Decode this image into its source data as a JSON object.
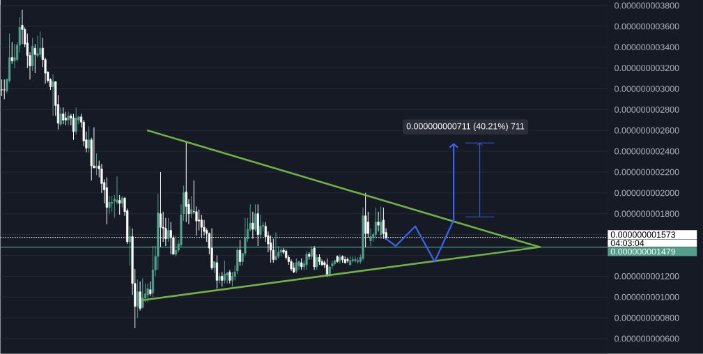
{
  "chart_data": {
    "type": "candlestick",
    "categories": [
      null,
      null,
      null,
      null,
      null,
      null,
      null,
      null,
      null,
      null,
      null,
      null,
      null,
      null,
      null,
      null,
      null,
      null,
      null,
      null,
      null,
      null,
      null,
      null,
      null,
      null,
      null,
      null,
      null,
      null,
      null,
      null,
      null,
      null,
      null,
      null,
      null,
      null,
      null,
      null,
      null,
      null,
      null,
      null,
      null,
      null,
      null,
      null,
      null,
      null,
      null,
      null,
      null,
      null,
      null,
      null,
      null,
      null,
      null,
      null,
      null,
      null,
      null,
      null,
      null,
      null,
      null,
      null,
      null,
      null,
      null,
      null,
      null,
      null,
      null,
      null,
      null,
      null,
      null,
      null,
      null,
      null,
      null,
      null,
      null,
      null,
      null,
      null,
      null,
      null,
      null,
      null,
      null,
      null,
      null,
      null,
      null,
      null,
      null,
      null,
      null,
      null,
      null,
      null,
      null,
      null,
      null,
      null,
      null,
      null,
      null,
      null,
      null,
      null,
      null,
      null,
      null,
      null,
      null,
      null,
      null,
      null,
      null,
      null,
      null,
      null,
      null,
      null,
      null,
      null,
      null,
      null,
      null,
      null,
      null,
      null,
      null,
      null,
      null,
      null,
      null,
      null,
      null,
      null,
      null,
      null,
      null,
      null,
      null,
      null,
      null,
      null,
      null,
      null,
      null,
      null,
      null,
      null,
      null,
      null,
      null,
      null,
      null,
      null,
      null,
      null,
      null,
      null,
      null,
      null,
      null,
      null,
      null,
      null,
      null,
      null,
      null,
      null,
      null,
      null,
      null,
      null,
      null,
      null,
      null,
      null,
      null,
      null,
      null,
      null,
      null,
      null,
      null,
      null,
      null,
      null,
      null,
      null,
      null,
      null,
      null,
      null,
      null,
      null,
      null,
      null,
      null,
      null,
      null,
      null,
      null,
      null,
      null,
      null,
      null,
      null,
      null,
      null,
      null,
      null,
      null,
      null,
      null,
      null,
      null,
      null,
      null,
      null,
      null,
      null,
      null,
      null,
      null,
      null,
      null,
      null,
      null
    ],
    "ohlc": [
      [
        2.99e-09,
        3.09e-09,
        2.93e-09,
        2.99e-09
      ],
      [
        2.99e-09,
        3.09e-09,
        2.9e-09,
        2.99e-09
      ],
      [
        2.98e-09,
        3.1e-09,
        2.96e-09,
        3.09e-09
      ],
      [
        3.08e-09,
        3.53e-09,
        3.06e-09,
        3.3e-09
      ],
      [
        3.3e-09,
        3.45e-09,
        3.24e-09,
        3.27e-09
      ],
      [
        3.27e-09,
        3.43e-09,
        3.2e-09,
        3.3e-09
      ],
      [
        3.28e-09,
        3.45e-09,
        3.26e-09,
        3.42e-09
      ],
      [
        3.42e-09,
        3.69e-09,
        3.35e-09,
        3.59e-09
      ],
      [
        3.61e-09,
        3.76e-09,
        3.43e-09,
        3.57e-09
      ],
      [
        3.57e-09,
        3.59e-09,
        3.4e-09,
        3.43e-09
      ],
      [
        3.44e-09,
        3.53e-09,
        3.2e-09,
        3.32e-09
      ],
      [
        3.32e-09,
        3.35e-09,
        3.09e-09,
        3.22e-09
      ],
      [
        3.22e-09,
        3.49e-09,
        3.17e-09,
        3.41e-09
      ],
      [
        3.39e-09,
        3.43e-09,
        3.15e-09,
        3.33e-09
      ],
      [
        3.32e-09,
        3.51e-09,
        3.3e-09,
        3.34e-09
      ],
      [
        3.33e-09,
        3.55e-09,
        3.3e-09,
        3.39e-09
      ],
      [
        3.39e-09,
        3.49e-09,
        3.21e-09,
        3.28e-09
      ],
      [
        3.28e-09,
        3.3e-09,
        3.05e-09,
        3.15e-09
      ],
      [
        3.16e-09,
        3.17e-09,
        3.06e-09,
        3.08e-09
      ],
      [
        3.09e-09,
        3.1e-09,
        2.99e-09,
        3.02e-09
      ],
      [
        3.02e-09,
        3.14e-09,
        2.74e-09,
        3.07e-09
      ],
      [
        3.07e-09,
        3.07e-09,
        2.74e-09,
        2.84e-09
      ],
      [
        2.85e-09,
        2.94e-09,
        2.61e-09,
        2.67e-09
      ],
      [
        2.66e-09,
        2.82e-09,
        2.64e-09,
        2.76e-09
      ],
      [
        2.76e-09,
        2.82e-09,
        2.66e-09,
        2.7e-09
      ],
      [
        2.72e-09,
        2.78e-09,
        2.65e-09,
        2.7e-09
      ],
      [
        2.7e-09,
        2.78e-09,
        2.65e-09,
        2.74e-09
      ],
      [
        2.74e-09,
        2.76e-09,
        2.65e-09,
        2.72e-09
      ],
      [
        2.72e-09,
        2.76e-09,
        2.51e-09,
        2.59e-09
      ],
      [
        2.59e-09,
        2.82e-09,
        2.56e-09,
        2.72e-09
      ],
      [
        2.7e-09,
        2.74e-09,
        2.66e-09,
        2.73e-09
      ],
      [
        2.73e-09,
        2.76e-09,
        2.63e-09,
        2.68e-09
      ],
      [
        2.68e-09,
        2.7e-09,
        2.45e-09,
        2.5e-09
      ],
      [
        2.51e-09,
        2.59e-09,
        2.39e-09,
        2.43e-09
      ],
      [
        2.43e-09,
        2.64e-09,
        2.39e-09,
        2.51e-09
      ],
      [
        2.51e-09,
        2.53e-09,
        2.12e-09,
        2.26e-09
      ],
      [
        2.26e-09,
        2.63e-09,
        2.24e-09,
        2.24e-09
      ],
      [
        2.24e-09,
        2.38e-09,
        2.17e-09,
        2.26e-09
      ],
      [
        2.26e-09,
        2.31e-09,
        2.15e-09,
        2.23e-09
      ],
      [
        2.23e-09,
        2.28e-09,
        2e-09,
        2.09e-09
      ],
      [
        2.1e-09,
        2.13e-09,
        1.9e-09,
        2.03e-09
      ],
      [
        2.05e-09,
        2.15e-09,
        1.7e-09,
        1.86e-09
      ],
      [
        1.86e-09,
        1.97e-09,
        1.8e-09,
        1.91e-09
      ],
      [
        1.9e-09,
        1.97e-09,
        1.82e-09,
        1.91e-09
      ],
      [
        1.92e-09,
        1.98e-09,
        1.76e-09,
        1.94e-09
      ],
      [
        1.91e-09,
        2.16e-09,
        1.89e-09,
        1.93e-09
      ],
      [
        1.93e-09,
        1.98e-09,
        1.79e-09,
        1.9e-09
      ],
      [
        1.9e-09,
        1.97e-09,
        1.86e-09,
        1.95e-09
      ],
      [
        1.95e-09,
        1.96e-09,
        1.78e-09,
        1.82e-09
      ],
      [
        1.83e-09,
        1.85e-09,
        1.51e-09,
        1.53e-09
      ],
      [
        1.53e-09,
        1.68e-09,
        1.3e-09,
        1.58e-09
      ],
      [
        1.58e-09,
        1.66e-09,
        1.02e-09,
        1.13e-09
      ],
      [
        1.13e-09,
        1.27e-09,
        7e-10,
        9.1e-10
      ],
      [
        9.1e-10,
        1.17e-09,
        8e-10,
        1.05e-09
      ],
      [
        1.05e-09,
        1.15e-09,
        8.7e-10,
        8.9e-10
      ],
      [
        9e-10,
        1.18e-09,
        8.9e-10,
        9.9e-10
      ],
      [
        9.9e-10,
        1.13e-09,
        9.5e-10,
        1.03e-09
      ],
      [
        1.02e-09,
        1.13e-09,
        9.5e-10,
        1.08e-09
      ],
      [
        1.07e-09,
        1.15e-09,
        1.01e-09,
        1.03e-09
      ],
      [
        1.04e-09,
        1.49e-09,
        1e-09,
        1.26e-09
      ],
      [
        1.26e-09,
        1.49e-09,
        1.2e-09,
        1.39e-09
      ],
      [
        1.39e-09,
        1.99e-09,
        1.26e-09,
        1.81e-09
      ],
      [
        1.8e-09,
        2.2e-09,
        1.48e-09,
        1.67e-09
      ],
      [
        1.67e-09,
        1.82e-09,
        1.53e-09,
        1.66e-09
      ],
      [
        1.66e-09,
        1.76e-09,
        1.49e-09,
        1.56e-09
      ],
      [
        1.56e-09,
        1.76e-09,
        1.53e-09,
        1.64e-09
      ],
      [
        1.64e-09,
        1.72e-09,
        1.41e-09,
        1.57e-09
      ],
      [
        1.57e-09,
        1.59e-09,
        1.41e-09,
        1.41e-09
      ],
      [
        1.41e-09,
        1.59e-09,
        1.39e-09,
        1.45e-09
      ],
      [
        1.45e-09,
        1.55e-09,
        1.43e-09,
        1.51e-09
      ],
      [
        1.5e-09,
        1.89e-09,
        1.48e-09,
        1.79e-09
      ],
      [
        1.8e-09,
        2.07e-09,
        1.73e-09,
        2e-09
      ],
      [
        2.01e-09,
        2.49e-09,
        1.72e-09,
        1.87e-09
      ],
      [
        1.89e-09,
        1.94e-09,
        1.7e-09,
        1.8e-09
      ],
      [
        1.8e-09,
        1.97e-09,
        1.76e-09,
        1.84e-09
      ],
      [
        1.82e-09,
        2.12e-09,
        1.8e-09,
        1.82e-09
      ],
      [
        1.82e-09,
        1.87e-09,
        1.59e-09,
        1.73e-09
      ],
      [
        1.74e-09,
        1.84e-09,
        1.64e-09,
        1.73e-09
      ],
      [
        1.74e-09,
        1.79e-09,
        1.57e-09,
        1.67e-09
      ],
      [
        1.67e-09,
        1.74e-09,
        1.59e-09,
        1.63e-09
      ],
      [
        1.64e-09,
        1.66e-09,
        1.53e-09,
        1.61e-09
      ],
      [
        1.61e-09,
        1.62e-09,
        1.41e-09,
        1.47e-09
      ],
      [
        1.47e-09,
        1.66e-09,
        1.26e-09,
        1.28e-09
      ],
      [
        1.28e-09,
        1.34e-09,
        1.23e-09,
        1.34e-09
      ],
      [
        1.33e-09,
        1.4e-09,
        1.08e-09,
        1.16e-09
      ],
      [
        1.16e-09,
        1.23e-09,
        1.13e-09,
        1.2e-09
      ],
      [
        1.2e-09,
        1.24e-09,
        1.1e-09,
        1.16e-09
      ],
      [
        1.16e-09,
        1.35e-09,
        1.13e-09,
        1.22e-09
      ],
      [
        1.21e-09,
        1.24e-09,
        1.13e-09,
        1.23e-09
      ],
      [
        1.24e-09,
        1.26e-09,
        1.13e-09,
        1.16e-09
      ],
      [
        1.16e-09,
        1.24e-09,
        1.1e-09,
        1.2e-09
      ],
      [
        1.2e-09,
        1.3e-09,
        1.16e-09,
        1.24e-09
      ],
      [
        1.25e-09,
        1.47e-09,
        1.22e-09,
        1.45e-09
      ],
      [
        1.45e-09,
        1.55e-09,
        1.3e-09,
        1.34e-09
      ],
      [
        1.34e-09,
        1.42e-09,
        1.3e-09,
        1.42e-09
      ],
      [
        1.42e-09,
        1.76e-09,
        1.39e-09,
        1.57e-09
      ],
      [
        1.56e-09,
        1.76e-09,
        1.53e-09,
        1.65e-09
      ],
      [
        1.65e-09,
        1.89e-09,
        1.63e-09,
        1.71e-09
      ],
      [
        1.71e-09,
        1.82e-09,
        1.56e-09,
        1.65e-09
      ],
      [
        1.65e-09,
        1.89e-09,
        1.63e-09,
        1.8e-09
      ],
      [
        1.8e-09,
        1.89e-09,
        1.49e-09,
        1.6e-09
      ],
      [
        1.6e-09,
        1.79e-09,
        1.56e-09,
        1.68e-09
      ],
      [
        1.68e-09,
        1.72e-09,
        1.63e-09,
        1.69e-09
      ],
      [
        1.68e-09,
        1.72e-09,
        1.53e-09,
        1.58e-09
      ],
      [
        1.59e-09,
        1.63e-09,
        1.43e-09,
        1.51e-09
      ],
      [
        1.52e-09,
        1.59e-09,
        1.33e-09,
        1.45e-09
      ],
      [
        1.45e-09,
        1.56e-09,
        1.33e-09,
        1.36e-09
      ],
      [
        1.36e-09,
        1.62e-09,
        1.35e-09,
        1.39e-09
      ],
      [
        1.39e-09,
        1.49e-09,
        1.37e-09,
        1.43e-09
      ],
      [
        1.43e-09,
        1.47e-09,
        1.39e-09,
        1.45e-09
      ],
      [
        1.45e-09,
        1.47e-09,
        1.41e-09,
        1.43e-09
      ],
      [
        1.44e-09,
        1.46e-09,
        1.36e-09,
        1.38e-09
      ],
      [
        1.38e-09,
        1.4e-09,
        1.31e-09,
        1.34e-09
      ],
      [
        1.34e-09,
        1.36e-09,
        1.25e-09,
        1.27e-09
      ],
      [
        1.28e-09,
        1.33e-09,
        1.23e-09,
        1.24e-09
      ],
      [
        1.25e-09,
        1.37e-09,
        1.23e-09,
        1.33e-09
      ],
      [
        1.3e-09,
        1.35e-09,
        1.26e-09,
        1.34e-09
      ],
      [
        1.33e-09,
        1.37e-09,
        1.26e-09,
        1.29e-09
      ],
      [
        1.29e-09,
        1.35e-09,
        1.26e-09,
        1.32e-09
      ],
      [
        1.31e-09,
        1.44e-09,
        1.26e-09,
        1.41e-09
      ],
      [
        1.41e-09,
        1.43e-09,
        1.36e-09,
        1.39e-09
      ],
      [
        1.39e-09,
        1.49e-09,
        1.36e-09,
        1.46e-09
      ],
      [
        1.47e-09,
        1.49e-09,
        1.26e-09,
        1.29e-09
      ],
      [
        1.29e-09,
        1.41e-09,
        1.26e-09,
        1.38e-09
      ],
      [
        1.38e-09,
        1.41e-09,
        1.31e-09,
        1.34e-09
      ],
      [
        1.34e-09,
        1.36e-09,
        1.3e-09,
        1.31e-09
      ],
      [
        1.33e-09,
        1.35e-09,
        1.28e-09,
        1.31e-09
      ],
      [
        1.31e-09,
        1.37e-09,
        1.19e-09,
        1.21e-09
      ],
      [
        1.21e-09,
        1.29e-09,
        1.19e-09,
        1.29e-09
      ],
      [
        1.3e-09,
        1.35e-09,
        1.27e-09,
        1.32e-09
      ],
      [
        1.32e-09,
        1.36e-09,
        1.3e-09,
        1.35e-09
      ],
      [
        1.39e-09,
        1.4e-09,
        1.33e-09,
        1.34e-09
      ],
      [
        1.35e-09,
        1.41e-09,
        1.32e-09,
        1.38e-09
      ],
      [
        1.39e-09,
        1.4e-09,
        1.33e-09,
        1.36e-09
      ],
      [
        1.36e-09,
        1.39e-09,
        1.32e-09,
        1.33e-09
      ],
      [
        1.36e-09,
        1.38e-09,
        1.33e-09,
        1.35e-09
      ],
      [
        1.31e-09,
        1.39e-09,
        1.3e-09,
        1.35e-09
      ],
      [
        1.35e-09,
        1.39e-09,
        1.33e-09,
        1.36e-09
      ],
      [
        1.35e-09,
        1.39e-09,
        1.33e-09,
        1.36e-09
      ],
      [
        1.34e-09,
        1.38e-09,
        1.32e-09,
        1.35e-09
      ],
      [
        1.34e-09,
        1.41e-09,
        1.32e-09,
        1.38e-09
      ],
      [
        1.37e-09,
        1.86e-09,
        1.35e-09,
        1.78e-09
      ],
      [
        1.78e-09,
        2e-09,
        1.48e-09,
        1.61e-09
      ],
      [
        1.72e-09,
        1.82e-09,
        1.57e-09,
        1.61e-09
      ],
      [
        1.54e-09,
        1.66e-09,
        1.49e-09,
        1.58e-09
      ],
      [
        1.57e-09,
        1.62e-09,
        1.53e-09,
        1.6e-09
      ],
      [
        1.6e-09,
        1.86e-09,
        1.56e-09,
        1.72e-09
      ],
      [
        1.72e-09,
        1.82e-09,
        1.63e-09,
        1.69e-09
      ],
      [
        1.6e-09,
        1.87e-09,
        1.56e-09,
        1.72e-09
      ],
      [
        1.74e-09,
        1.86e-09,
        1.56e-09,
        1.61e-09
      ],
      [
        1.62e-09,
        1.66e-09,
        1.55e-09,
        1.56e-09
      ],
      null,
      null,
      null,
      null,
      null,
      null,
      null,
      null,
      null,
      null,
      null,
      null,
      null,
      null,
      null,
      null,
      null,
      null,
      null,
      null,
      null,
      null,
      null,
      null,
      null,
      null,
      null,
      null,
      null,
      null,
      null,
      null,
      null,
      null,
      null,
      null,
      null,
      null,
      null,
      null,
      null,
      null,
      null,
      null,
      null,
      null,
      null,
      null,
      null,
      null,
      null,
      null,
      null,
      null,
      null,
      null,
      null,
      null,
      null,
      null,
      null,
      null,
      null,
      null,
      null,
      null,
      null,
      null,
      null,
      null,
      null,
      null,
      null,
      null,
      null,
      null,
      null,
      null,
      null,
      null,
      null,
      null,
      null,
      null,
      null,
      null
    ],
    "colors": [
      "#ffffff",
      "#ffffff",
      "#52a08c",
      "#52a08c",
      "#ffffff",
      "#52a08c",
      "#52a08c",
      "#52a08c",
      "#ffffff",
      "#ffffff",
      "#ffffff",
      "#ffffff",
      "#52a08c",
      "#ffffff",
      "#52a08c",
      "#52a08c",
      "#ffffff",
      "#ffffff",
      "#ffffff",
      "#ffffff",
      "#52a08c",
      "#ffffff",
      "#ffffff",
      "#52a08c",
      "#ffffff",
      "#ffffff",
      "#52a08c",
      "#ffffff",
      "#ffffff",
      "#52a08c",
      "#52a08c",
      "#ffffff",
      "#ffffff",
      "#ffffff",
      "#52a08c",
      "#ffffff",
      "#ffffff",
      "#52a08c",
      "#ffffff",
      "#ffffff",
      "#ffffff",
      "#ffffff",
      "#52a08c",
      "#52a08c",
      "#52a08c",
      "#52a08c",
      "#ffffff",
      "#52a08c",
      "#ffffff",
      "#ffffff",
      "#52a08c",
      "#ffffff",
      "#ffffff",
      "#52a08c",
      "#ffffff",
      "#52a08c",
      "#52a08c",
      "#52a08c",
      "#ffffff",
      "#52a08c",
      "#52a08c",
      "#52a08c",
      "#ffffff",
      "#ffffff",
      "#ffffff",
      "#52a08c",
      "#ffffff",
      "#ffffff",
      "#52a08c",
      "#52a08c",
      "#52a08c",
      "#52a08c",
      "#ffffff",
      "#ffffff",
      "#52a08c",
      "#ffffff",
      "#ffffff",
      "#ffffff",
      "#ffffff",
      "#ffffff",
      "#ffffff",
      "#ffffff",
      "#ffffff",
      "#52a08c",
      "#ffffff",
      "#52a08c",
      "#ffffff",
      "#52a08c",
      "#52a08c",
      "#ffffff",
      "#52a08c",
      "#52a08c",
      "#52a08c",
      "#ffffff",
      "#52a08c",
      "#52a08c",
      "#52a08c",
      "#52a08c",
      "#ffffff",
      "#52a08c",
      "#ffffff",
      "#52a08c",
      "#52a08c",
      "#ffffff",
      "#ffffff",
      "#ffffff",
      "#ffffff",
      "#52a08c",
      "#52a08c",
      "#52a08c",
      "#ffffff",
      "#ffffff",
      "#ffffff",
      "#ffffff",
      "#ffffff",
      "#52a08c",
      "#52a08c",
      "#ffffff",
      "#52a08c",
      "#52a08c",
      "#ffffff",
      "#52a08c",
      "#ffffff",
      "#52a08c",
      "#ffffff",
      "#ffffff",
      "#ffffff",
      "#ffffff",
      "#52a08c",
      "#52a08c",
      "#52a08c",
      "#ffffff",
      "#52a08c",
      "#ffffff",
      "#ffffff",
      "#ffffff",
      "#52a08c",
      "#52a08c",
      "#52a08c",
      "#52a08c",
      "#52a08c",
      "#52a08c",
      "#ffffff",
      "#ffffff",
      "#52a08c",
      "#52a08c",
      "#52a08c",
      "#ffffff",
      "#52a08c",
      "#ffffff",
      "#ffffff",
      null,
      null,
      null,
      null,
      null,
      null,
      null,
      null,
      null,
      null,
      null,
      null,
      null,
      null,
      null,
      null,
      null,
      null,
      null,
      null,
      null,
      null,
      null,
      null,
      null,
      null,
      null,
      null,
      null,
      null,
      null,
      null,
      null,
      null,
      null,
      null,
      null,
      null,
      null,
      null,
      null,
      null,
      null,
      null,
      null,
      null,
      null,
      null,
      null,
      null,
      null,
      null,
      null,
      null,
      null,
      null,
      null,
      null,
      null,
      null,
      null,
      null,
      null,
      null,
      null,
      null,
      null,
      null,
      null,
      null,
      null,
      null,
      null,
      null,
      null,
      null,
      null,
      null,
      null,
      null,
      null,
      null,
      null,
      null,
      null,
      null
    ],
    "series": [
      {
        "type": "line",
        "color": "#72b043",
        "values": [
          null,
          null,
          null,
          null,
          null,
          null,
          null,
          null,
          null,
          null,
          null,
          null,
          null,
          null,
          null,
          null,
          null,
          null,
          null,
          null,
          null,
          null,
          null,
          null,
          null,
          null,
          null,
          null,
          null,
          null,
          null,
          null,
          null,
          null,
          null,
          null,
          null,
          null,
          null,
          null,
          null,
          null,
          null,
          null,
          null,
          null,
          null,
          null,
          null,
          null,
          null,
          null,
          null,
          null,
          null,
          null,
          null,
          2.6e-09,
          null,
          null,
          null,
          null,
          null,
          null,
          null,
          null,
          null,
          null,
          null,
          null,
          null,
          null,
          null,
          null,
          null,
          null,
          null,
          null,
          null,
          null,
          null,
          null,
          null,
          null,
          null,
          null,
          null,
          null,
          null,
          null,
          null,
          null,
          null,
          null,
          null,
          null,
          null,
          null,
          null,
          null,
          null,
          null,
          null,
          null,
          null,
          null,
          null,
          null,
          null,
          null,
          null,
          null,
          null,
          null,
          null,
          null,
          null,
          null,
          null,
          null,
          null,
          null,
          null,
          null,
          null,
          null,
          null,
          null,
          null,
          null,
          null,
          null,
          null,
          null,
          null,
          null,
          null,
          null,
          null,
          null,
          null,
          null,
          null,
          null,
          null,
          null,
          null,
          null,
          null,
          null,
          null,
          null,
          null,
          null,
          null,
          null,
          null,
          null,
          null,
          null,
          null,
          null,
          null,
          null,
          null,
          null,
          null,
          null,
          null,
          null,
          null,
          null,
          null,
          null,
          null,
          null,
          null,
          null,
          null,
          null,
          null,
          null,
          null,
          null,
          null,
          null,
          null,
          null,
          null,
          null,
          null,
          null,
          null,
          null,
          null,
          null,
          null,
          null,
          null,
          null,
          null,
          null,
          null,
          null,
          null,
          null,
          null,
          null,
          null,
          null,
          1.48e-09,
          null,
          null,
          null,
          null,
          null,
          null,
          null,
          null,
          null,
          null,
          null,
          null,
          null,
          null,
          null,
          null,
          null,
          null,
          null,
          null,
          null,
          null,
          null,
          null,
          null,
          null
        ]
      },
      {
        "type": "line",
        "color": "#72b043",
        "values": [
          null,
          null,
          null,
          null,
          null,
          null,
          null,
          null,
          null,
          null,
          null,
          null,
          null,
          null,
          null,
          null,
          null,
          null,
          null,
          null,
          null,
          null,
          null,
          null,
          null,
          null,
          null,
          null,
          null,
          null,
          null,
          null,
          null,
          null,
          null,
          null,
          null,
          null,
          null,
          null,
          null,
          null,
          null,
          null,
          null,
          null,
          null,
          null,
          null,
          null,
          null,
          null,
          null,
          null,
          null,
          9.7e-10,
          null,
          null,
          null,
          null,
          null,
          null,
          null,
          null,
          null,
          null,
          null,
          null,
          null,
          null,
          null,
          null,
          null,
          null,
          null,
          null,
          null,
          null,
          null,
          null,
          null,
          null,
          null,
          null,
          null,
          null,
          null,
          null,
          null,
          null,
          null,
          null,
          null,
          null,
          null,
          null,
          null,
          null,
          null,
          null,
          null,
          null,
          null,
          null,
          null,
          null,
          null,
          null,
          null,
          null,
          null,
          null,
          null,
          null,
          null,
          null,
          null,
          null,
          null,
          null,
          null,
          null,
          null,
          null,
          null,
          null,
          null,
          null,
          null,
          null,
          null,
          null,
          null,
          null,
          null,
          null,
          null,
          null,
          null,
          null,
          null,
          null,
          null,
          null,
          null,
          null,
          null,
          null,
          null,
          null,
          null,
          null,
          null,
          null,
          null,
          null,
          null,
          null,
          null,
          null,
          null,
          null,
          null,
          null,
          null,
          null,
          null,
          null,
          null,
          null,
          null,
          null,
          null,
          null,
          null,
          null,
          null,
          null,
          null,
          null,
          null,
          null,
          null,
          null,
          null,
          null,
          null,
          null,
          null,
          null,
          null,
          null,
          null,
          null,
          null,
          null,
          null,
          null,
          null,
          null,
          null,
          null,
          null,
          null,
          null,
          null,
          null,
          null,
          null,
          null,
          1.48e-09,
          null,
          null,
          null,
          null,
          null,
          null,
          null,
          null,
          null,
          null,
          null,
          null,
          null,
          null,
          null,
          null,
          null,
          null,
          null,
          null,
          null,
          null,
          null,
          null,
          null,
          null
        ]
      }
    ],
    "ylim": [
      4.55e-10,
      3.8e-09
    ],
    "yticks": [
      {
        "value": 6e-10,
        "label": "0.000000000600"
      },
      {
        "value": 8e-10,
        "label": "0.000000000800"
      },
      {
        "value": 1e-09,
        "label": "0.000000001000"
      },
      {
        "value": 1.2e-09,
        "label": "0.000000001200"
      },
      {
        "value": 1.4e-09,
        "label": null
      },
      {
        "value": 1.6e-09,
        "label": null
      },
      {
        "value": 1.8e-09,
        "label": "0.000000001800"
      },
      {
        "value": 2e-09,
        "label": "0.000000002000"
      },
      {
        "value": 2.2e-09,
        "label": "0.000000002200"
      },
      {
        "value": 2.4e-09,
        "label": "0.000000002400"
      },
      {
        "value": 2.6e-09,
        "label": "0.000000002600"
      },
      {
        "value": 2.8e-09,
        "label": "0.000000002800"
      },
      {
        "value": 3e-09,
        "label": "0.000000003000"
      },
      {
        "value": 3.2e-09,
        "label": "0.000000003200"
      },
      {
        "value": 3.4e-09,
        "label": "0.000000003400"
      },
      {
        "value": 3.6e-09,
        "label": "0.000000003600"
      },
      {
        "value": 3.8e-09,
        "label": "0.000000003800"
      }
    ],
    "grid": "y",
    "ref_lines": [
      {
        "axis": "y",
        "value": 1.573e-09,
        "label": "0.000000001573",
        "color": "#ffffff",
        "line_style": "dotted"
      },
      {
        "axis": "y",
        "value": 1.479e-09,
        "label": "0.000000001479",
        "color": "#52a08c",
        "line_style": "solid"
      }
    ],
    "annotations": [
      "04:03:04",
      "0.000000000711 (40.21%) 711"
    ]
  }
}
